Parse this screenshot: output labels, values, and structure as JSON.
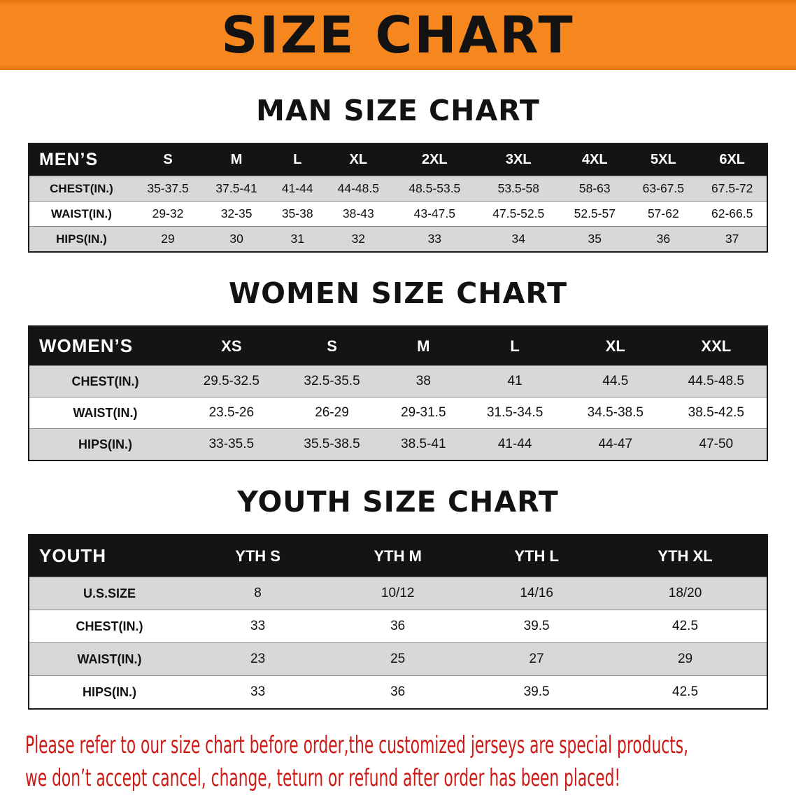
{
  "banner": {
    "title": "SIZE CHART"
  },
  "sections": [
    {
      "heading": "MAN SIZE CHART",
      "table": {
        "header": [
          "MEN’S",
          "S",
          "M",
          "L",
          "XL",
          "2XL",
          "3XL",
          "4XL",
          "5XL",
          "6XL"
        ],
        "rows": [
          [
            "CHEST(IN.)",
            "35-37.5",
            "37.5-41",
            "41-44",
            "44-48.5",
            "48.5-53.5",
            "53.5-58",
            "58-63",
            "63-67.5",
            "67.5-72"
          ],
          [
            "WAIST(IN.)",
            "29-32",
            "32-35",
            "35-38",
            "38-43",
            "43-47.5",
            "47.5-52.5",
            "52.5-57",
            "57-62",
            "62-66.5"
          ],
          [
            "HIPS(IN.)",
            "29",
            "30",
            "31",
            "32",
            "33",
            "34",
            "35",
            "36",
            "37"
          ]
        ]
      }
    },
    {
      "heading": "WOMEN SIZE CHART",
      "table": {
        "header": [
          "WOMEN’S",
          "XS",
          "S",
          "M",
          "L",
          "XL",
          "XXL"
        ],
        "rows": [
          [
            "CHEST(IN.)",
            "29.5-32.5",
            "32.5-35.5",
            "38",
            "41",
            "44.5",
            "44.5-48.5"
          ],
          [
            "WAIST(IN.)",
            "23.5-26",
            "26-29",
            "29-31.5",
            "31.5-34.5",
            "34.5-38.5",
            "38.5-42.5"
          ],
          [
            "HIPS(IN.)",
            "33-35.5",
            "35.5-38.5",
            "38.5-41",
            "41-44",
            "44-47",
            "47-50"
          ]
        ]
      }
    },
    {
      "heading": "YOUTH SIZE CHART",
      "table": {
        "header": [
          "YOUTH",
          "YTH S",
          "YTH M",
          "YTH L",
          "YTH XL"
        ],
        "rows": [
          [
            "U.S.SIZE",
            "8",
            "10/12",
            "14/16",
            "18/20"
          ],
          [
            "CHEST(IN.)",
            "33",
            "36",
            "39.5",
            "42.5"
          ],
          [
            "WAIST(IN.)",
            "23",
            "25",
            "27",
            "29"
          ],
          [
            "HIPS(IN.)",
            "33",
            "36",
            "39.5",
            "42.5"
          ]
        ]
      }
    }
  ],
  "footer": {
    "line1": "Please refer to our size chart before order,the customized jerseys are special products,",
    "line2": "we don’t accept cancel, change, teturn or refund after order has been placed!"
  },
  "colors": {
    "banner-bg": "#f6871f",
    "header-bg": "#141414",
    "header-text": "#ffffff",
    "row-alt": "#d8d8d8",
    "footer-text": "#cd1a15"
  }
}
